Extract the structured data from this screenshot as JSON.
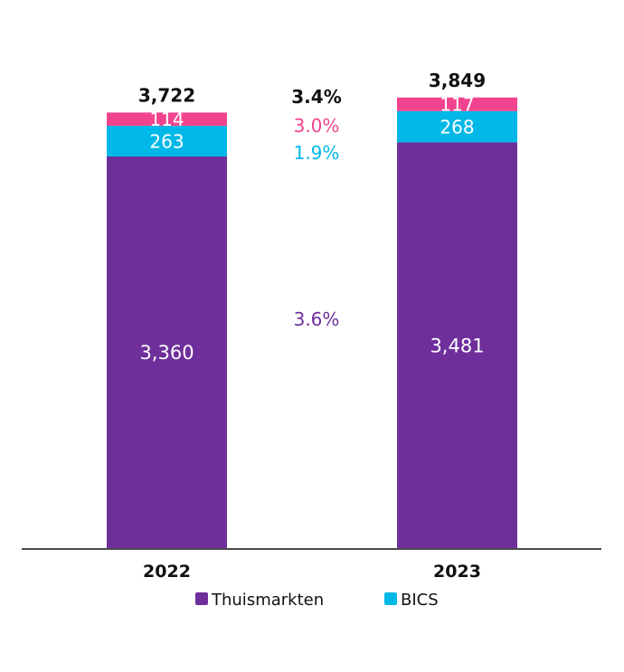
{
  "chart_data": {
    "type": "bar",
    "stacked": true,
    "categories": [
      "2022",
      "2023"
    ],
    "totals": [
      "3,722",
      "3,849"
    ],
    "series": [
      {
        "name": "Thuismarkten",
        "values": [
          3360,
          3481
        ],
        "labels": [
          "3,360",
          "3,481"
        ],
        "growth": "3.6%",
        "color": "#6e2f9b"
      },
      {
        "name": "BICS",
        "values": [
          263,
          268
        ],
        "labels": [
          "263",
          "268"
        ],
        "growth": "1.9%",
        "color": "#00b8e8"
      },
      {
        "values": [
          114,
          117
        ],
        "labels": [
          "114",
          "117"
        ],
        "growth": "3.0%",
        "color": "#f2448e"
      }
    ],
    "total_growth": "3.4%",
    "ylim": [
      0,
      3900
    ],
    "legend_position": "bottom",
    "grid": false
  }
}
